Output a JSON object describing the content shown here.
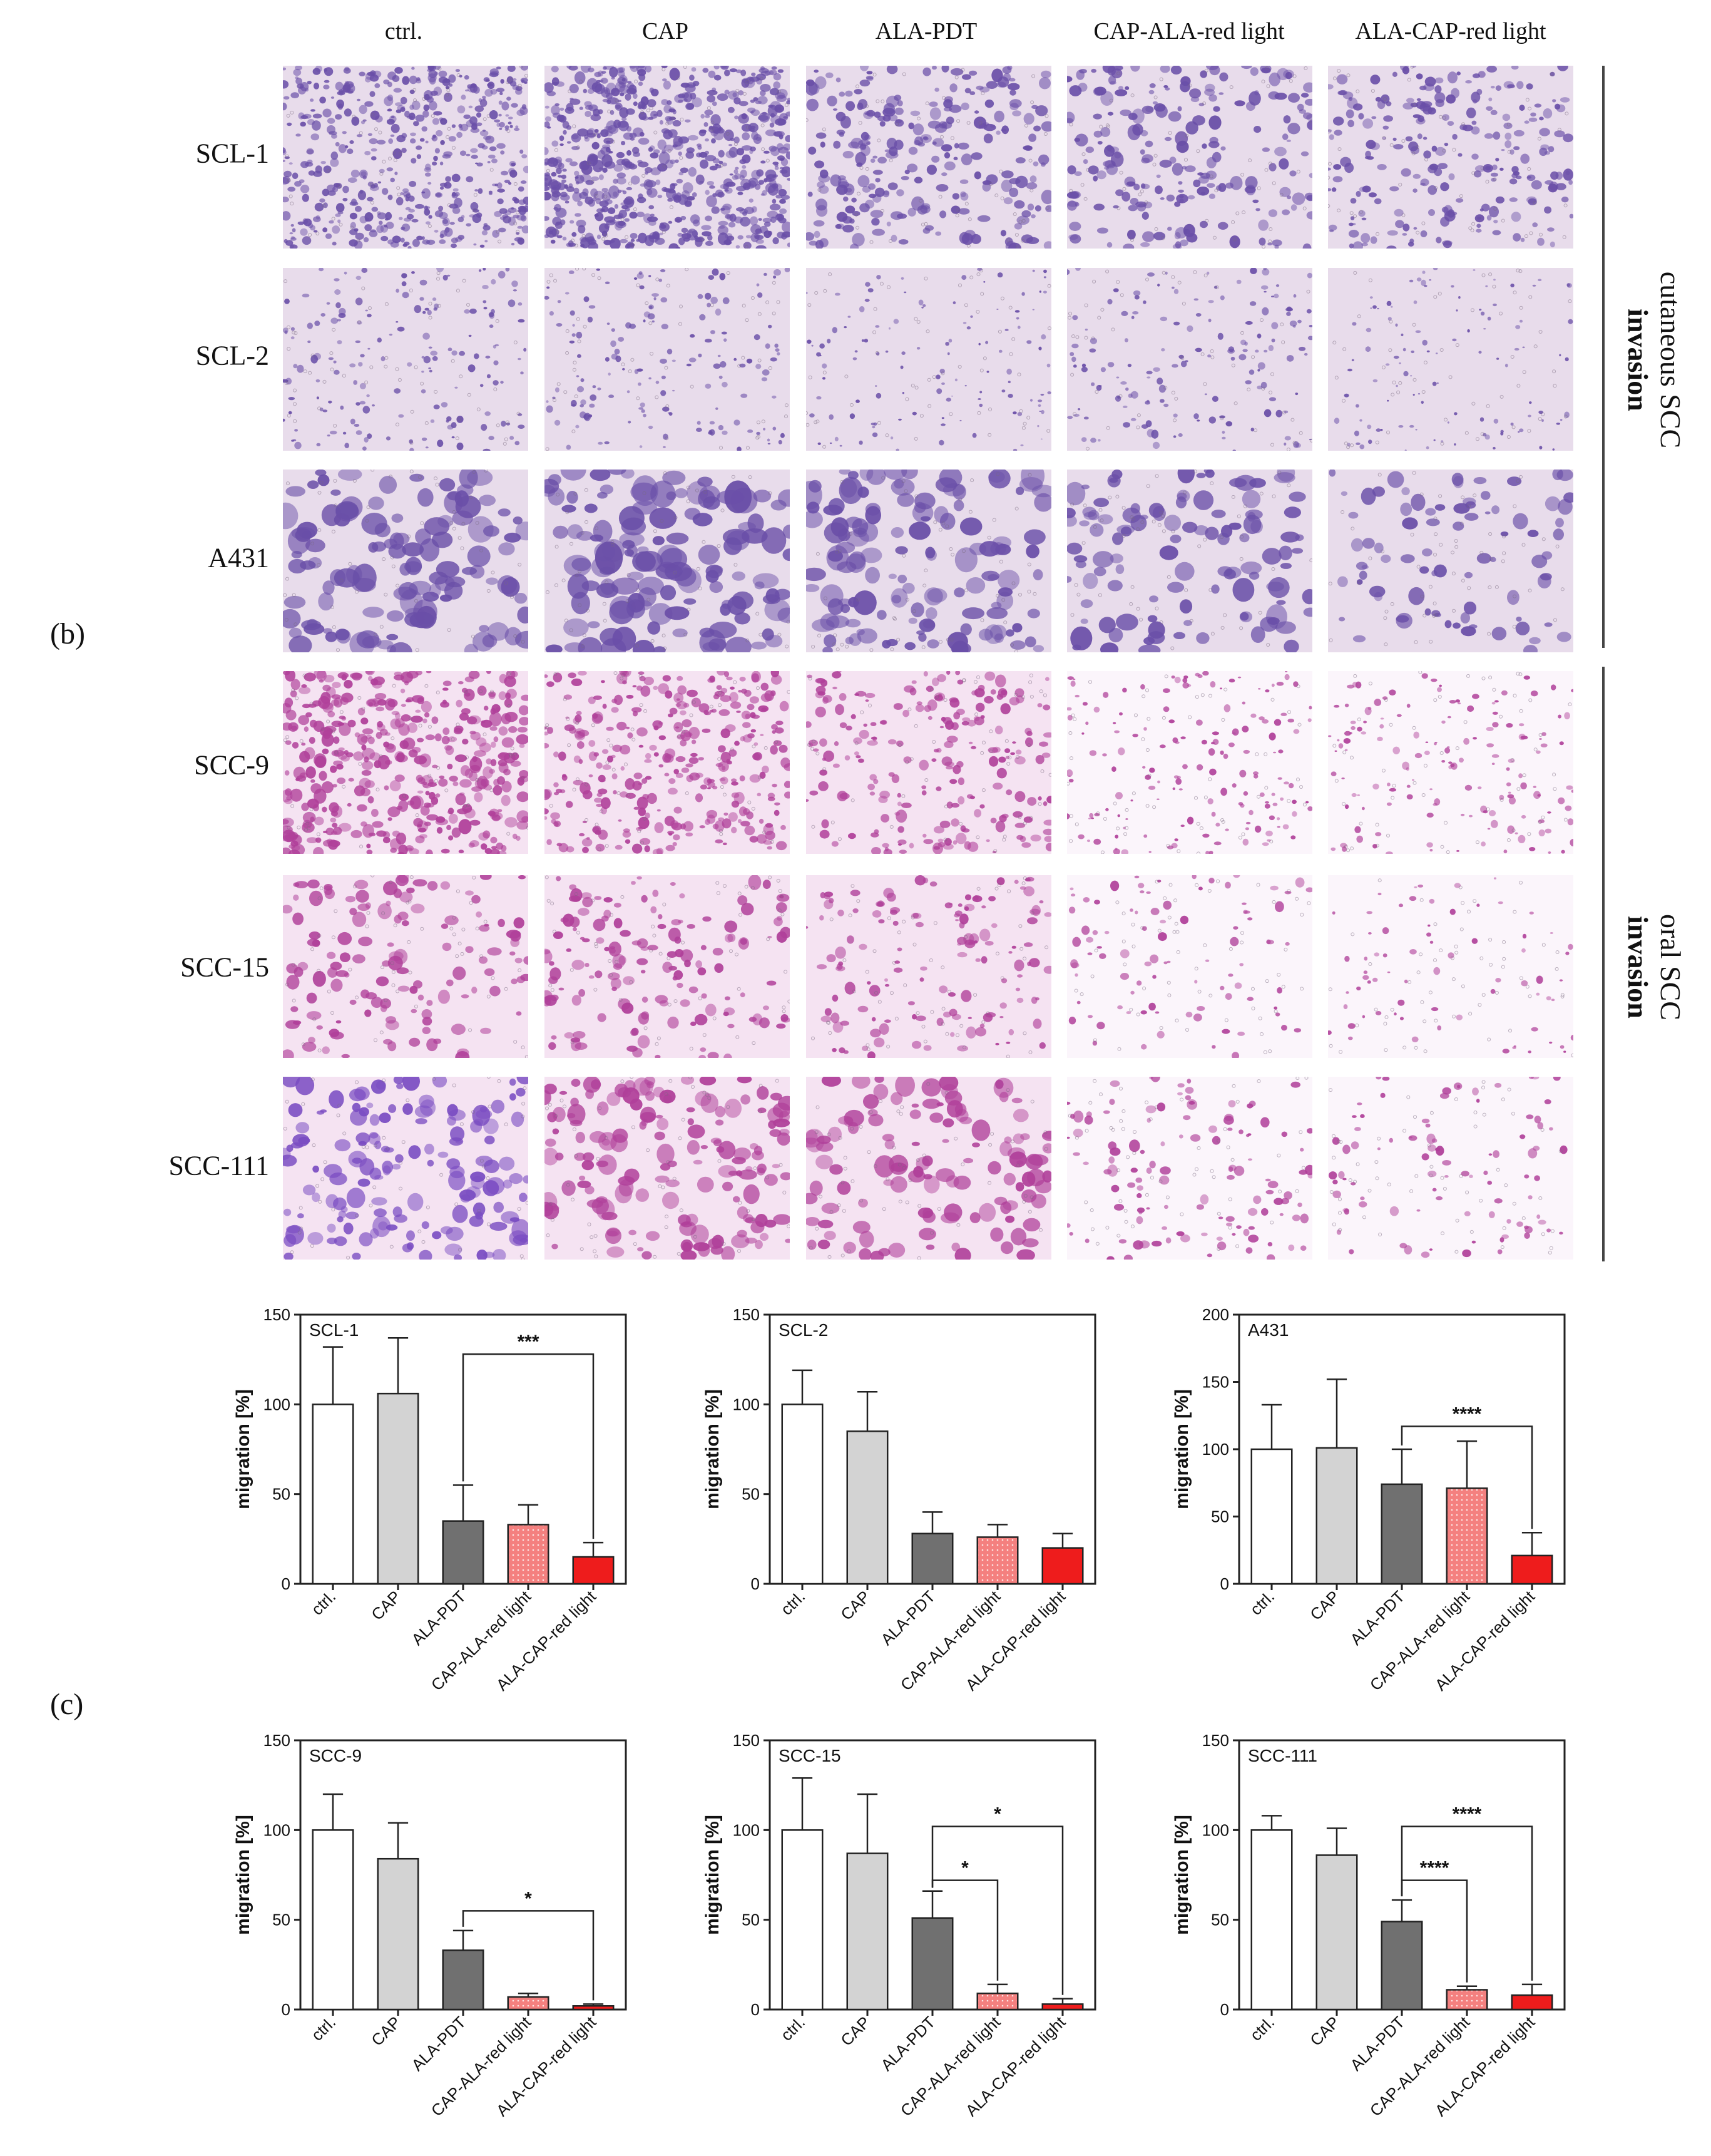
{
  "figure": {
    "panel_b_label": "(b)",
    "panel_c_label": "(c)",
    "columns": [
      "ctrl.",
      "CAP",
      "ALA-PDT",
      "CAP-ALA-red light",
      "ALA-CAP-red light"
    ],
    "rows": [
      "SCL-1",
      "SCL-2",
      "A431",
      "SCC-9",
      "SCC-15",
      "SCC-111"
    ],
    "side_labels": {
      "cutaneous": {
        "line1": "cutaneous SCC",
        "line2": "invasion"
      },
      "oral": {
        "line1": "oral SCC",
        "line2": "invasion"
      }
    },
    "colors": {
      "cutaneous_stain": "#6a4fa8",
      "oral_stain": "#b0409a",
      "ctrl_bar": "#ffffff",
      "cap_bar": "#d3d3d3",
      "ala_pdt_bar": "#707070",
      "cap_ala_bar": "#f4807f",
      "ala_cap_bar": "#ee1c1c"
    }
  },
  "chart_data": [
    {
      "type": "bar",
      "title": "SCL-1",
      "ylabel": "migration [%]",
      "ylim": [
        0,
        150
      ],
      "yticks": [
        0,
        50,
        100,
        150
      ],
      "categories": [
        "ctrl.",
        "CAP",
        "ALA-PDT",
        "CAP-ALA-red light",
        "ALA-CAP-red light"
      ],
      "values": [
        100,
        106,
        35,
        33,
        15
      ],
      "errors": [
        32,
        31,
        20,
        11,
        8
      ],
      "significance": [
        {
          "from": 2,
          "to": 4,
          "label": "***",
          "level": 128
        }
      ]
    },
    {
      "type": "bar",
      "title": "SCL-2",
      "ylabel": "migration [%]",
      "ylim": [
        0,
        150
      ],
      "yticks": [
        0,
        50,
        100,
        150
      ],
      "categories": [
        "ctrl.",
        "CAP",
        "ALA-PDT",
        "CAP-ALA-red light",
        "ALA-CAP-red light"
      ],
      "values": [
        100,
        85,
        28,
        26,
        20
      ],
      "errors": [
        19,
        22,
        12,
        7,
        8
      ],
      "significance": []
    },
    {
      "type": "bar",
      "title": "A431",
      "ylabel": "migration [%]",
      "ylim": [
        0,
        200
      ],
      "yticks": [
        0,
        50,
        100,
        150,
        200
      ],
      "categories": [
        "ctrl.",
        "CAP",
        "ALA-PDT",
        "CAP-ALA-red light",
        "ALA-CAP-red light"
      ],
      "values": [
        100,
        101,
        74,
        71,
        21
      ],
      "errors": [
        33,
        51,
        26,
        35,
        17
      ],
      "significance": [
        {
          "from": 2,
          "to": 4,
          "label": "****",
          "level": 117
        }
      ]
    },
    {
      "type": "bar",
      "title": "SCC-9",
      "ylabel": "migration [%]",
      "ylim": [
        0,
        150
      ],
      "yticks": [
        0,
        50,
        100,
        150
      ],
      "categories": [
        "ctrl.",
        "CAP",
        "ALA-PDT",
        "CAP-ALA-red light",
        "ALA-CAP-red light"
      ],
      "values": [
        100,
        84,
        33,
        7,
        2
      ],
      "errors": [
        20,
        20,
        11,
        2,
        1
      ],
      "significance": [
        {
          "from": 2,
          "to": 4,
          "label": "*",
          "level": 55
        }
      ]
    },
    {
      "type": "bar",
      "title": "SCC-15",
      "ylabel": "migration [%]",
      "ylim": [
        0,
        150
      ],
      "yticks": [
        0,
        50,
        100,
        150
      ],
      "categories": [
        "ctrl.",
        "CAP",
        "ALA-PDT",
        "CAP-ALA-red light",
        "ALA-CAP-red light"
      ],
      "values": [
        100,
        87,
        51,
        9,
        3
      ],
      "errors": [
        29,
        33,
        15,
        5,
        3
      ],
      "significance": [
        {
          "from": 2,
          "to": 3,
          "label": "*",
          "level": 72
        },
        {
          "from": 2,
          "to": 4,
          "label": "*",
          "level": 102
        }
      ]
    },
    {
      "type": "bar",
      "title": "SCC-111",
      "ylabel": "migration [%]",
      "ylim": [
        0,
        150
      ],
      "yticks": [
        0,
        50,
        100,
        150
      ],
      "categories": [
        "ctrl.",
        "CAP",
        "ALA-PDT",
        "CAP-ALA-red light",
        "ALA-CAP-red light"
      ],
      "values": [
        100,
        86,
        49,
        11,
        8
      ],
      "errors": [
        8,
        15,
        12,
        2,
        6
      ],
      "significance": [
        {
          "from": 2,
          "to": 3,
          "label": "****",
          "level": 72
        },
        {
          "from": 2,
          "to": 4,
          "label": "****",
          "level": 102
        }
      ]
    }
  ]
}
